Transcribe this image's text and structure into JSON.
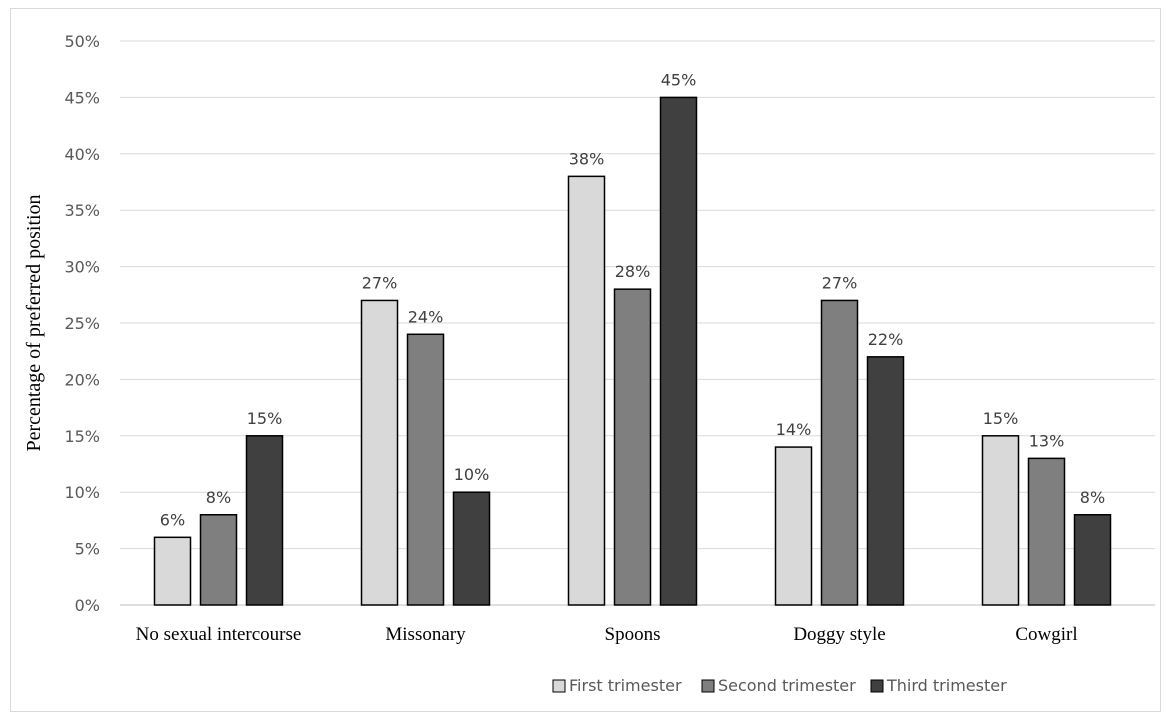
{
  "chart_data": {
    "type": "bar",
    "title": "",
    "xlabel": "",
    "ylabel": "Percentage of preferred position",
    "ylim": [
      0,
      50
    ],
    "ytick_step": 5,
    "ytick_suffix": "%",
    "grid": true,
    "legend_position": "bottom",
    "categories": [
      "No sexual intercourse",
      "Missonary",
      "Spoons",
      "Doggy style",
      "Cowgirl"
    ],
    "series": [
      {
        "name": "First trimester",
        "color": "#d9d9d9",
        "values": [
          6,
          27,
          38,
          14,
          15
        ]
      },
      {
        "name": "Second trimester",
        "color": "#7f7f7f",
        "values": [
          8,
          24,
          28,
          27,
          13
        ]
      },
      {
        "name": "Third trimester",
        "color": "#404040",
        "values": [
          15,
          10,
          45,
          22,
          8
        ]
      }
    ]
  }
}
